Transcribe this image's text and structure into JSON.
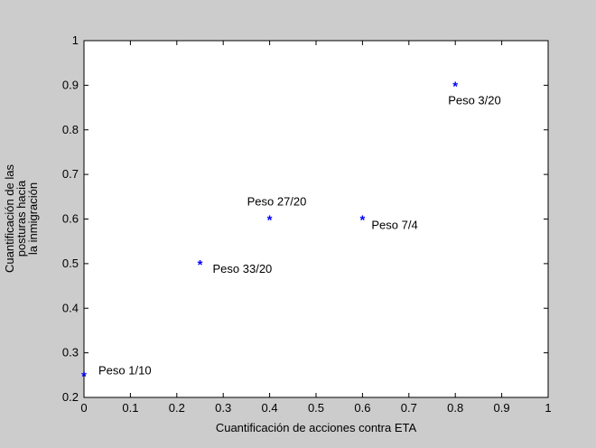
{
  "chart_data": {
    "type": "scatter",
    "title": "",
    "xlabel": "Cuantificación de acciones contra ETA",
    "ylabel_lines": [
      "Cuantificación de las",
      "posturas hacia",
      "la inmigración"
    ],
    "xlim": [
      0,
      1
    ],
    "ylim": [
      0.2,
      1
    ],
    "xticks": [
      "0",
      "0.1",
      "0.2",
      "0.3",
      "0.4",
      "0.5",
      "0.6",
      "0.7",
      "0.8",
      "0.9",
      "1"
    ],
    "yticks": [
      "0.2",
      "0.3",
      "0.4",
      "0.5",
      "0.6",
      "0.7",
      "0.8",
      "0.9",
      "1"
    ],
    "grid": false,
    "legend": "none",
    "marker": "*",
    "marker_color": "#0000ff",
    "points": [
      {
        "x": 0.0,
        "y": 0.25,
        "label": "Peso 1/10"
      },
      {
        "x": 0.25,
        "y": 0.5,
        "label": "Peso 33/20"
      },
      {
        "x": 0.4,
        "y": 0.6,
        "label": "Peso 27/20"
      },
      {
        "x": 0.6,
        "y": 0.6,
        "label": "Peso 7/4"
      },
      {
        "x": 0.8,
        "y": 0.9,
        "label": "Peso 3/20"
      }
    ]
  }
}
